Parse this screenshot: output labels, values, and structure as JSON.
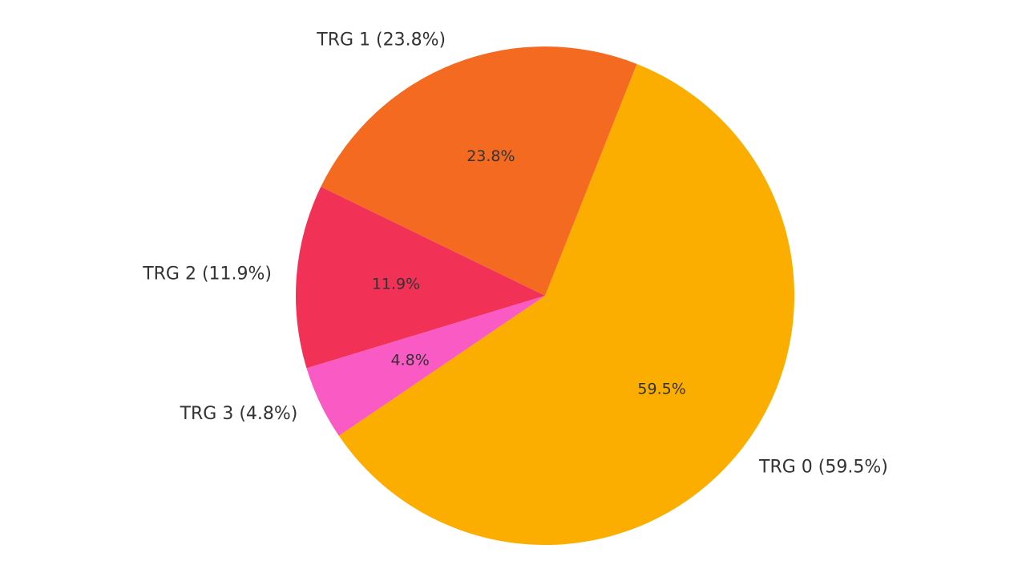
{
  "chart_data": {
    "type": "pie",
    "categories": [
      "TRG 0",
      "TRG 1",
      "TRG 2",
      "TRG 3"
    ],
    "values": [
      59.5,
      23.8,
      11.9,
      4.8
    ],
    "colors": [
      "#FBAE00",
      "#F46A21",
      "#F23157",
      "#F95AC3"
    ],
    "outer_labels": [
      "TRG 0 (59.5%)",
      "TRG 1 (23.8%)",
      "TRG 2 (11.9%)",
      "TRG 3 (4.8%)"
    ],
    "inner_labels": [
      "59.5%",
      "23.8%",
      "11.9%",
      "4.8%"
    ],
    "title": "",
    "legend": false
  }
}
